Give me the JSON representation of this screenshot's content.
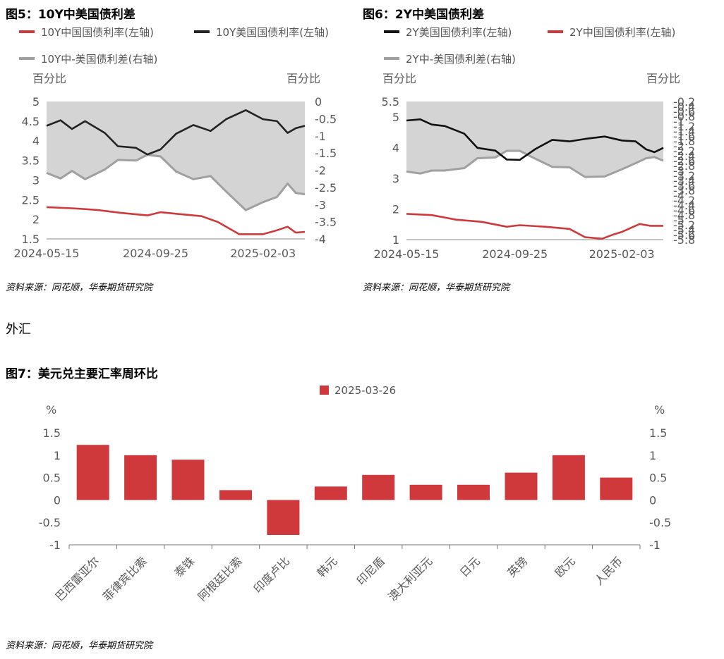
{
  "charts": {
    "c5": {
      "title": "图5：10Y中美国债利差",
      "legend": [
        "10Y中国国债利率(左轴)",
        "10Y美国国债利率(左轴)",
        "10Y中-美国债利差(右轴)"
      ],
      "left_unit": "百分比",
      "right_unit": "百分比",
      "left_ticks": [
        "5",
        "4.5",
        "4",
        "3.5",
        "3",
        "2.5",
        "2",
        "1.5"
      ],
      "right_ticks": [
        "0",
        "-0.5",
        "-1",
        "-1.5",
        "-2",
        "-2.5",
        "-3",
        "-3.5",
        "-4"
      ],
      "x_ticks": [
        "2024-05-15",
        "2024-09-25",
        "2025-02-03"
      ],
      "source": "资料来源：同花顺，华泰期货研究院"
    },
    "c6": {
      "title": "图6：2Y中美国债利差",
      "legend": [
        "2Y美国国债利率(左轴)",
        "2Y中国国债利率(左轴)",
        "2Y中-美国债利差(右轴)"
      ],
      "left_unit": "百分比",
      "right_unit": "百分比",
      "left_ticks": [
        "5.5",
        "5",
        "4",
        "3",
        "2",
        "1"
      ],
      "right_ticks": [
        "-0.2",
        "-0.4",
        "-0.6",
        "-0.8",
        "-1",
        "-1.2",
        "-1.4",
        "-1.6",
        "-1.8",
        "-2",
        "-2.2",
        "-2.4",
        "-2.6",
        "-2.8",
        "-3",
        "-3.2",
        "-3.4",
        "-3.6",
        "-3.8",
        "-4",
        "-4.2",
        "-4.4",
        "-4.6",
        "-4.8",
        "-5",
        "-5.2",
        "-5.4",
        "-5.6",
        "-5.8"
      ],
      "x_ticks": [
        "2024-05-15",
        "2024-09-25",
        "2025-02-03"
      ],
      "source": "资料来源：同花顺，华泰期货研究院"
    },
    "section": "外汇",
    "c7": {
      "title": "图7：美元兑主要汇率周环比",
      "legend": "2025-03-26",
      "left_unit": "%",
      "right_unit": "%",
      "ticks": [
        "1.5",
        "1",
        "0.5",
        "0",
        "-0.5",
        "-1"
      ],
      "source": "资料来源：同花顺，华泰期货研究院"
    }
  },
  "chart_data": [
    {
      "type": "line",
      "title": "图5：10Y中美国债利差",
      "ylabel": "百分比",
      "ylim": [
        1.5,
        5
      ],
      "y2lim": [
        -4,
        0
      ],
      "x_range": [
        "2024-05-15",
        "2025-03-26"
      ],
      "series": [
        {
          "name": "10Y中国国债利率(左轴)",
          "axis": "left",
          "color": "#d0393b",
          "x": [
            "2024-05-15",
            "2024-06-15",
            "2024-07-15",
            "2024-08-15",
            "2024-09-15",
            "2024-10-01",
            "2024-10-20",
            "2024-11-20",
            "2024-12-10",
            "2025-01-05",
            "2025-02-03",
            "2025-02-20",
            "2025-03-05",
            "2025-03-15",
            "2025-03-26"
          ],
          "values": [
            2.31,
            2.28,
            2.24,
            2.16,
            2.1,
            2.18,
            2.14,
            2.08,
            1.93,
            1.62,
            1.62,
            1.72,
            1.81,
            1.66,
            1.68
          ]
        },
        {
          "name": "10Y美国国债利率(左轴)",
          "axis": "left",
          "color": "#222222",
          "x": [
            "2024-05-15",
            "2024-06-01",
            "2024-06-15",
            "2024-07-01",
            "2024-07-25",
            "2024-08-10",
            "2024-09-01",
            "2024-09-15",
            "2024-10-01",
            "2024-10-20",
            "2024-11-10",
            "2024-12-01",
            "2024-12-20",
            "2025-01-13",
            "2025-02-03",
            "2025-02-20",
            "2025-03-05",
            "2025-03-15",
            "2025-03-26"
          ],
          "values": [
            4.38,
            4.52,
            4.3,
            4.5,
            4.2,
            3.86,
            3.82,
            3.65,
            3.78,
            4.18,
            4.4,
            4.25,
            4.55,
            4.78,
            4.55,
            4.5,
            4.2,
            4.32,
            4.38
          ]
        },
        {
          "name": "10Y中-美国债利差(右轴)",
          "axis": "right",
          "color": "#a0a0a0",
          "area": true,
          "x": [
            "2024-05-15",
            "2024-06-01",
            "2024-06-15",
            "2024-07-01",
            "2024-07-25",
            "2024-08-10",
            "2024-09-01",
            "2024-09-15",
            "2024-10-01",
            "2024-10-20",
            "2024-11-10",
            "2024-12-01",
            "2024-12-20",
            "2025-01-13",
            "2025-02-03",
            "2025-02-20",
            "2025-03-05",
            "2025-03-15",
            "2025-03-26"
          ],
          "values": [
            -2.08,
            -2.24,
            -2.02,
            -2.26,
            -1.98,
            -1.7,
            -1.72,
            -1.55,
            -1.6,
            -2.04,
            -2.26,
            -2.17,
            -2.62,
            -3.16,
            -2.93,
            -2.78,
            -2.39,
            -2.66,
            -2.7
          ]
        }
      ]
    },
    {
      "type": "line",
      "title": "图6：2Y中美国债利差",
      "ylabel": "百分比",
      "ylim": [
        1,
        5.5
      ],
      "y2lim": [
        -5.8,
        -0.2
      ],
      "x_range": [
        "2024-05-15",
        "2025-03-26"
      ],
      "series": [
        {
          "name": "2Y美国国债利率(左轴)",
          "axis": "left",
          "color": "#111111",
          "x": [
            "2024-05-15",
            "2024-06-01",
            "2024-06-15",
            "2024-07-01",
            "2024-07-25",
            "2024-08-10",
            "2024-09-01",
            "2024-09-15",
            "2024-10-01",
            "2024-10-20",
            "2024-11-10",
            "2024-12-01",
            "2024-12-20",
            "2025-01-13",
            "2025-02-03",
            "2025-02-20",
            "2025-03-05",
            "2025-03-15",
            "2025-03-26"
          ],
          "values": [
            4.88,
            4.92,
            4.75,
            4.7,
            4.45,
            3.99,
            3.9,
            3.61,
            3.6,
            3.95,
            4.25,
            4.2,
            4.28,
            4.36,
            4.23,
            4.2,
            3.94,
            3.85,
            3.99
          ]
        },
        {
          "name": "2Y中国国债利率(左轴)",
          "axis": "left",
          "color": "#d0393b",
          "x": [
            "2024-05-15",
            "2024-06-15",
            "2024-07-15",
            "2024-08-15",
            "2024-09-15",
            "2024-10-01",
            "2024-11-01",
            "2024-12-01",
            "2024-12-20",
            "2025-01-10",
            "2025-01-25",
            "2025-02-03",
            "2025-02-25",
            "2025-03-10",
            "2025-03-26"
          ],
          "values": [
            1.84,
            1.8,
            1.65,
            1.58,
            1.42,
            1.47,
            1.42,
            1.35,
            1.08,
            1.03,
            1.18,
            1.25,
            1.51,
            1.45,
            1.45
          ]
        },
        {
          "name": "2Y中-美国债利差(右轴)",
          "axis": "right",
          "color": "#a0a0a0",
          "area": true,
          "x": [
            "2024-05-15",
            "2024-06-01",
            "2024-06-15",
            "2024-07-01",
            "2024-07-25",
            "2024-08-10",
            "2024-09-01",
            "2024-09-15",
            "2024-10-01",
            "2024-10-20",
            "2024-11-10",
            "2024-12-01",
            "2024-12-20",
            "2025-01-13",
            "2025-02-03",
            "2025-02-20",
            "2025-03-05",
            "2025-03-15",
            "2025-03-26"
          ],
          "values": [
            -3.04,
            -3.12,
            -3.0,
            -3.0,
            -2.9,
            -2.5,
            -2.47,
            -2.2,
            -2.2,
            -2.52,
            -2.85,
            -2.87,
            -3.26,
            -3.24,
            -2.95,
            -2.7,
            -2.5,
            -2.45,
            -2.6
          ]
        }
      ]
    },
    {
      "type": "bar",
      "title": "图7：美元兑主要汇率周环比",
      "ylabel": "%",
      "ylim": [
        -1,
        1.5
      ],
      "categories": [
        "巴西雷亚尔",
        "菲律宾比索",
        "泰铢",
        "阿根廷比索",
        "印度卢比",
        "韩元",
        "印尼盾",
        "澳大利亚元",
        "日元",
        "英镑",
        "欧元",
        "人民币"
      ],
      "series": [
        {
          "name": "2025-03-26",
          "color": "#d0393b",
          "values": [
            1.23,
            1.0,
            0.9,
            0.22,
            -0.78,
            0.3,
            0.56,
            0.34,
            0.34,
            0.61,
            1.0,
            0.5
          ]
        }
      ]
    }
  ]
}
